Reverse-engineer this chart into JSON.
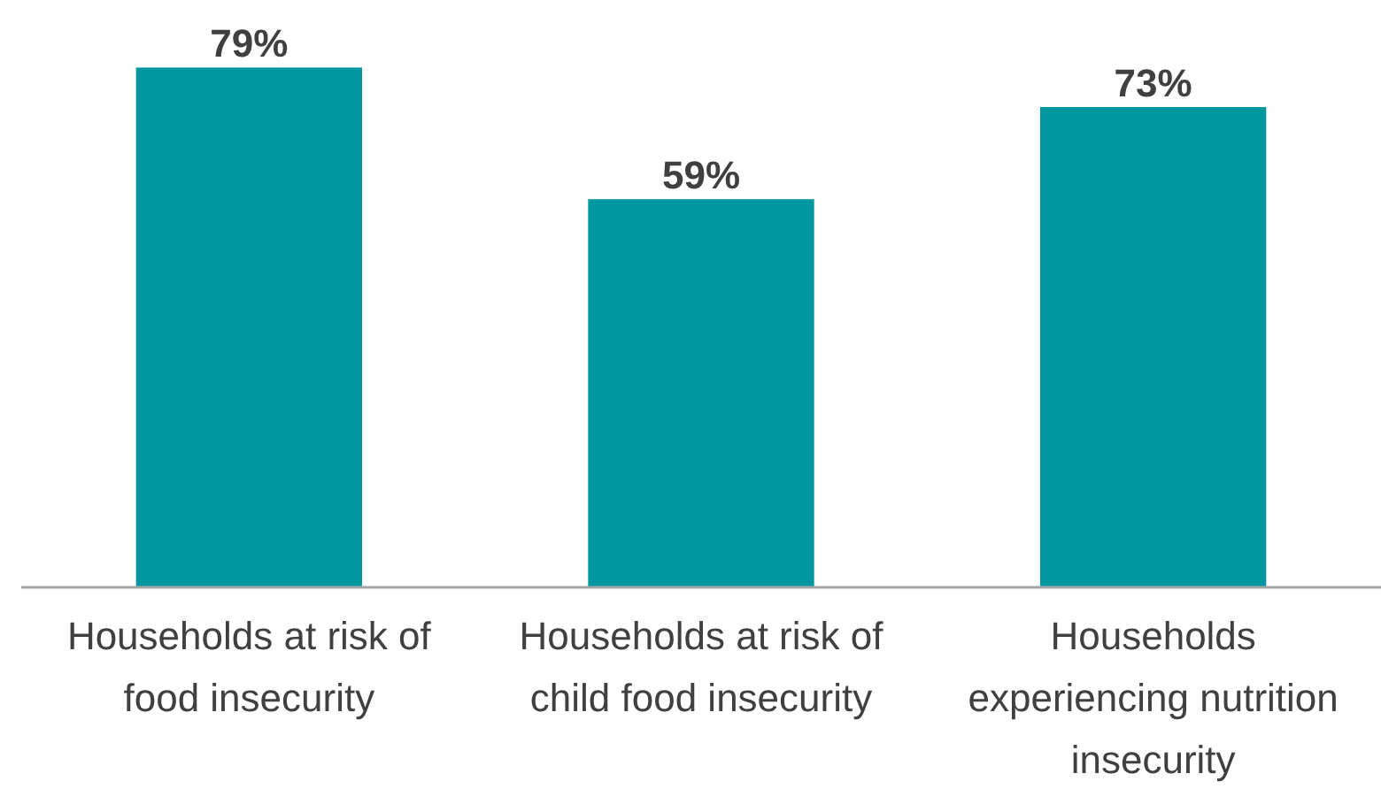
{
  "chart_data": {
    "type": "bar",
    "categories": [
      "Households at risk of food insecurity",
      "Households at risk of child food insecurity",
      "Households experiencing nutrition insecurity"
    ],
    "values": [
      79,
      59,
      73
    ],
    "value_labels": [
      "79%",
      "59%",
      "73%"
    ],
    "color": "#0097a1",
    "relative": false
  }
}
